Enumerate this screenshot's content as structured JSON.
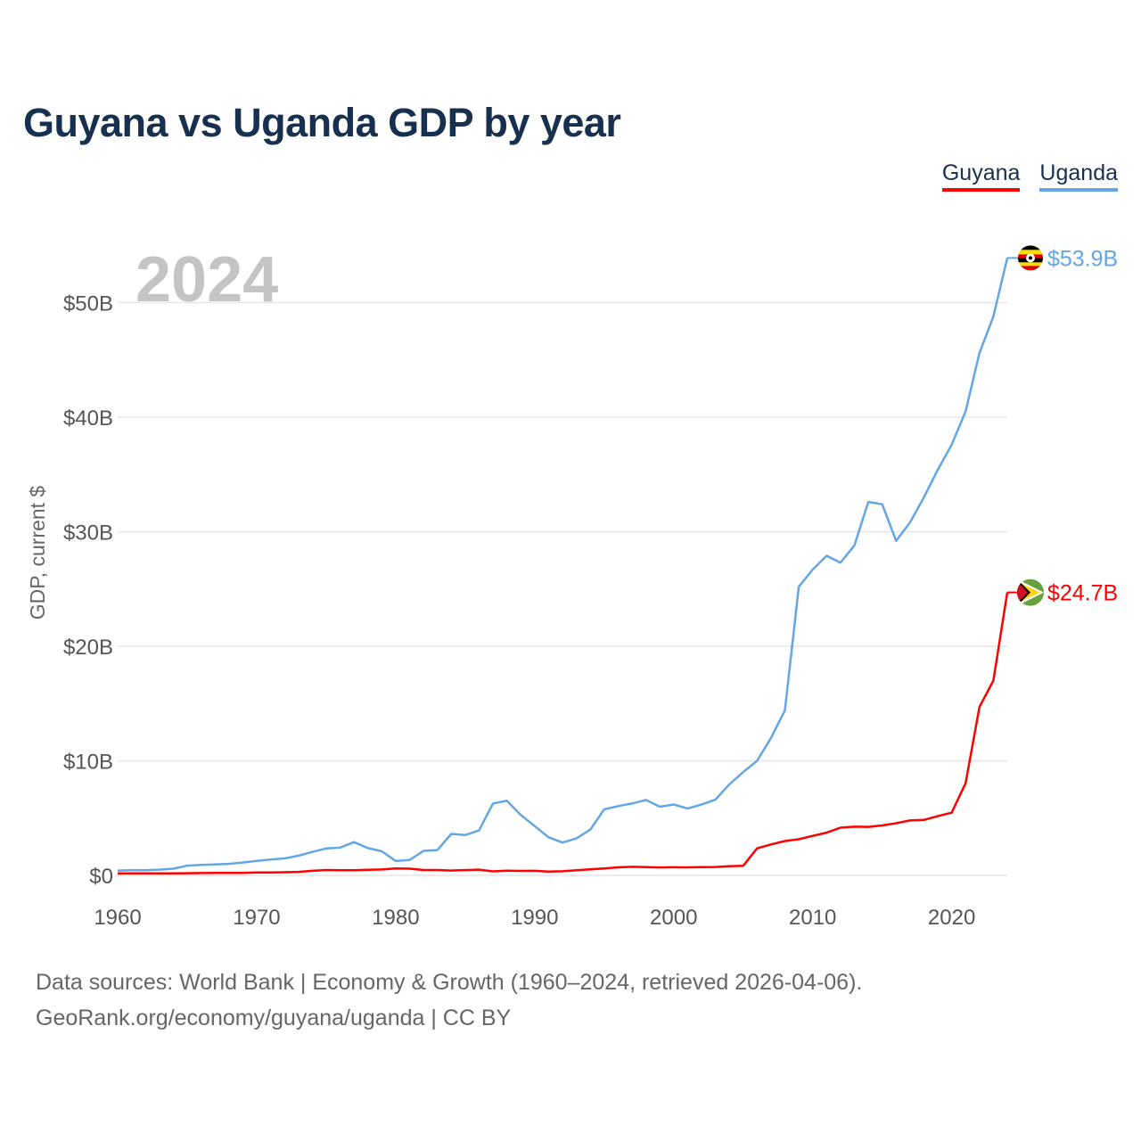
{
  "title": "Guyana vs Uganda GDP by year",
  "legend": [
    {
      "name": "Guyana",
      "color": "#ff0000"
    },
    {
      "name": "Uganda",
      "color": "#63a6e6"
    }
  ],
  "year_watermark": "2024",
  "footer": {
    "line1": "Data sources: World Bank | Economy & Growth (1960–2024, retrieved 2026-04-06).",
    "line2": "GeoRank.org/economy/guyana/uganda | CC BY"
  },
  "chart_data": {
    "type": "line",
    "title": "Guyana vs Uganda GDP by year",
    "xlabel": "",
    "ylabel": "GDP, current $",
    "xlim": [
      1960,
      2024
    ],
    "ylim": [
      0,
      55
    ],
    "y_unit": "billion USD",
    "grid": true,
    "x_ticks": [
      1960,
      1970,
      1980,
      1990,
      2000,
      2010,
      2020
    ],
    "x_tick_labels": [
      "1960",
      "1970",
      "1980",
      "1990",
      "2000",
      "2010",
      "2020"
    ],
    "y_ticks": [
      0,
      10,
      20,
      30,
      40,
      50
    ],
    "y_tick_labels": [
      "$0",
      "$10B",
      "$20B",
      "$30B",
      "$40B",
      "$50B"
    ],
    "legend_position": "top-right",
    "x": [
      1960,
      1961,
      1962,
      1963,
      1964,
      1965,
      1966,
      1967,
      1968,
      1969,
      1970,
      1971,
      1972,
      1973,
      1974,
      1975,
      1976,
      1977,
      1978,
      1979,
      1980,
      1981,
      1982,
      1983,
      1984,
      1985,
      1986,
      1987,
      1988,
      1989,
      1990,
      1991,
      1992,
      1993,
      1994,
      1995,
      1996,
      1997,
      1998,
      1999,
      2000,
      2001,
      2002,
      2003,
      2004,
      2005,
      2006,
      2007,
      2008,
      2009,
      2010,
      2011,
      2012,
      2013,
      2014,
      2015,
      2016,
      2017,
      2018,
      2019,
      2020,
      2021,
      2022,
      2023,
      2024
    ],
    "series": [
      {
        "name": "Guyana",
        "color": "#ff0000",
        "end_label": "$24.7B",
        "values": [
          0.17,
          0.18,
          0.18,
          0.17,
          0.18,
          0.19,
          0.2,
          0.21,
          0.21,
          0.22,
          0.25,
          0.26,
          0.27,
          0.3,
          0.4,
          0.47,
          0.45,
          0.44,
          0.49,
          0.51,
          0.6,
          0.58,
          0.47,
          0.47,
          0.42,
          0.46,
          0.5,
          0.35,
          0.41,
          0.39,
          0.4,
          0.33,
          0.36,
          0.44,
          0.52,
          0.6,
          0.7,
          0.75,
          0.72,
          0.69,
          0.71,
          0.7,
          0.72,
          0.73,
          0.79,
          0.83,
          2.36,
          2.7,
          3.0,
          3.15,
          3.45,
          3.73,
          4.16,
          4.25,
          4.23,
          4.36,
          4.55,
          4.79,
          4.84,
          5.17,
          5.47,
          8.04,
          14.7,
          17.0,
          24.7
        ]
      },
      {
        "name": "Uganda",
        "color": "#63a6e6",
        "end_label": "$53.9B",
        "values": [
          0.42,
          0.44,
          0.45,
          0.5,
          0.58,
          0.85,
          0.92,
          0.96,
          1.0,
          1.12,
          1.26,
          1.38,
          1.48,
          1.71,
          2.05,
          2.35,
          2.42,
          2.9,
          2.38,
          2.1,
          1.25,
          1.34,
          2.14,
          2.21,
          3.62,
          3.52,
          3.92,
          6.27,
          6.51,
          5.28,
          4.3,
          3.32,
          2.86,
          3.22,
          3.99,
          5.76,
          6.05,
          6.27,
          6.58,
          5.99,
          6.19,
          5.84,
          6.18,
          6.61,
          7.94,
          9.01,
          10.0,
          12.0,
          14.4,
          25.2,
          26.7,
          27.9,
          27.3,
          28.8,
          32.6,
          32.4,
          29.2,
          30.8,
          33.0,
          35.4,
          37.6,
          40.5,
          45.6,
          48.8,
          53.9
        ]
      }
    ]
  }
}
